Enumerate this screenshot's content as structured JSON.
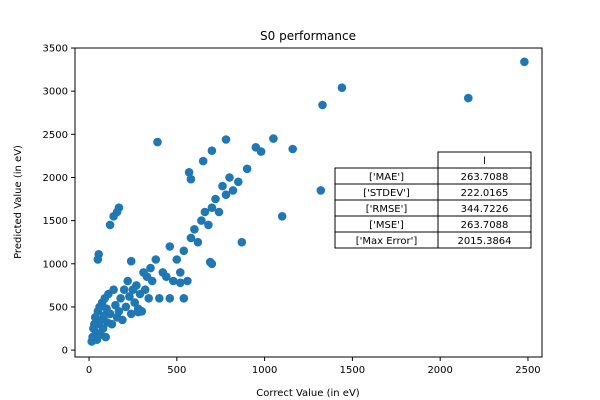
{
  "chart_data": {
    "type": "scatter",
    "title": "S0 performance",
    "xlabel": "Correct Value (in eV)",
    "ylabel": "Predicted Value (in eV)",
    "xlim": [
      -80,
      2580
    ],
    "ylim": [
      -80,
      3500
    ],
    "x_ticks": [
      0,
      500,
      1000,
      1500,
      2000,
      2500
    ],
    "y_ticks": [
      0,
      500,
      1000,
      1500,
      2000,
      2500,
      3000,
      3500
    ],
    "grid": false,
    "marker_color": "#1f77b4",
    "points": [
      [
        15,
        100
      ],
      [
        20,
        150
      ],
      [
        25,
        250
      ],
      [
        30,
        300
      ],
      [
        35,
        380
      ],
      [
        40,
        200
      ],
      [
        45,
        120
      ],
      [
        50,
        450
      ],
      [
        55,
        300
      ],
      [
        60,
        500
      ],
      [
        65,
        180
      ],
      [
        70,
        350
      ],
      [
        75,
        550
      ],
      [
        80,
        250
      ],
      [
        85,
        400
      ],
      [
        90,
        600
      ],
      [
        95,
        150
      ],
      [
        100,
        480
      ],
      [
        105,
        320
      ],
      [
        110,
        650
      ],
      [
        120,
        420
      ],
      [
        130,
        300
      ],
      [
        140,
        700
      ],
      [
        150,
        520
      ],
      [
        160,
        380
      ],
      [
        170,
        450
      ],
      [
        180,
        600
      ],
      [
        190,
        350
      ],
      [
        200,
        700
      ],
      [
        210,
        500
      ],
      [
        220,
        800
      ],
      [
        230,
        620
      ],
      [
        240,
        420
      ],
      [
        250,
        700
      ],
      [
        260,
        550
      ],
      [
        270,
        750
      ],
      [
        280,
        480
      ],
      [
        290,
        650
      ],
      [
        300,
        450
      ],
      [
        310,
        900
      ],
      [
        320,
        700
      ],
      [
        330,
        850
      ],
      [
        340,
        600
      ],
      [
        350,
        950
      ],
      [
        360,
        800
      ],
      [
        380,
        1050
      ],
      [
        400,
        600
      ],
      [
        420,
        900
      ],
      [
        440,
        850
      ],
      [
        460,
        1200
      ],
      [
        480,
        800
      ],
      [
        500,
        1050
      ],
      [
        520,
        900
      ],
      [
        540,
        1150
      ],
      [
        560,
        800
      ],
      [
        580,
        1300
      ],
      [
        600,
        1400
      ],
      [
        620,
        1250
      ],
      [
        640,
        1500
      ],
      [
        660,
        1600
      ],
      [
        680,
        1450
      ],
      [
        700,
        1650
      ],
      [
        720,
        1750
      ],
      [
        740,
        1600
      ],
      [
        760,
        1900
      ],
      [
        780,
        1800
      ],
      [
        800,
        2000
      ],
      [
        820,
        1850
      ],
      [
        850,
        1950
      ],
      [
        870,
        1250
      ],
      [
        900,
        2100
      ],
      [
        950,
        2350
      ],
      [
        980,
        2300
      ],
      [
        1050,
        2450
      ],
      [
        1100,
        1550
      ],
      [
        1160,
        2330
      ],
      [
        1320,
        1850
      ],
      [
        1330,
        2840
      ],
      [
        1440,
        3040
      ],
      [
        2160,
        2920
      ],
      [
        2480,
        3340
      ],
      [
        50,
        1050
      ],
      [
        55,
        1110
      ],
      [
        120,
        1450
      ],
      [
        140,
        1550
      ],
      [
        160,
        1600
      ],
      [
        170,
        1650
      ],
      [
        240,
        1030
      ],
      [
        390,
        2410
      ],
      [
        570,
        2060
      ],
      [
        580,
        1980
      ],
      [
        650,
        2190
      ],
      [
        700,
        2310
      ],
      [
        780,
        2440
      ],
      [
        690,
        1020
      ],
      [
        700,
        1000
      ],
      [
        520,
        780
      ],
      [
        540,
        600
      ],
      [
        460,
        600
      ],
      [
        280,
        440
      ],
      [
        300,
        450
      ]
    ],
    "table": {
      "header": "l",
      "rows": [
        {
          "label": "['MAE']",
          "value": "263.7088"
        },
        {
          "label": "['STDEV']",
          "value": "222.0165"
        },
        {
          "label": "['RMSE']",
          "value": "344.7226"
        },
        {
          "label": "['MSE']",
          "value": "263.7088"
        },
        {
          "label": "['Max Error']",
          "value": "2015.3864"
        }
      ]
    }
  }
}
